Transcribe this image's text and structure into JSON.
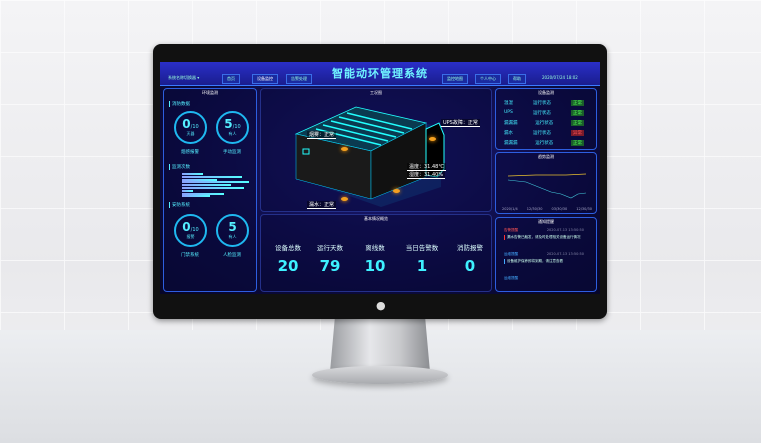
{
  "header": {
    "title": "智能动环管理系统",
    "account": "系统名称切换器 ▾",
    "nav": [
      "首页",
      "设备监控",
      "告警处理",
      "监控地图",
      "个人中心",
      "帮助"
    ],
    "datetime": "2020/07/24 18:02"
  },
  "left": {
    "title": "环境监测",
    "fire": {
      "label": "消防数据",
      "a": {
        "value": "0",
        "total": "/10",
        "unit": "灭器",
        "caption": "烟感报警"
      },
      "b": {
        "value": "5",
        "total": "/10",
        "unit": "有人",
        "caption": "手动监测"
      }
    },
    "monitor": {
      "label": "监测次数",
      "bars": [
        0.3,
        0.85,
        0.5,
        0.95,
        0.7,
        0.88,
        0.15,
        0.6,
        0.4
      ]
    },
    "security": {
      "label": "安防系统",
      "a": {
        "value": "0",
        "total": "/10",
        "unit": "报警",
        "caption": "门禁系统"
      },
      "b": {
        "value": "5",
        "total": "",
        "unit": "有人",
        "caption": "人脸监测"
      }
    }
  },
  "center": {
    "title": "工况图",
    "labels": {
      "smoke": "烟雾：正常",
      "ups": "UPS故障：正常",
      "temp": "温度：31.48℃",
      "humidity": "湿度：31.40%",
      "water": "漏水：正常"
    },
    "stats_title": "基本情况概览",
    "stats": [
      {
        "label": "设备总数",
        "value": "20"
      },
      {
        "label": "运行天数",
        "value": "79"
      },
      {
        "label": "离线数",
        "value": "10"
      },
      {
        "label": "当日告警数",
        "value": "1"
      },
      {
        "label": "消防报警",
        "value": "0"
      }
    ]
  },
  "right": {
    "status_title": "设备监测",
    "status": [
      {
        "name": "温湿",
        "state": "运行状态",
        "flag": "正常",
        "ok": true
      },
      {
        "name": "UPS",
        "state": "运行状态",
        "flag": "正常",
        "ok": true
      },
      {
        "name": "漏漏漏",
        "state": "运行状态",
        "flag": "正常",
        "ok": true
      },
      {
        "name": "漏水",
        "state": "运行状态",
        "flag": "异常",
        "ok": false
      },
      {
        "name": "漏漏漏",
        "state": "运行状态",
        "flag": "正常",
        "ok": true
      }
    ],
    "trend_title": "趋势监测",
    "trend_ticks_y": [
      "100",
      "80",
      "60",
      "40",
      "20",
      "0"
    ],
    "trend_ticks_x": [
      "2020/1/4",
      "12/30/30",
      "03/30/30",
      "12/30/30"
    ],
    "alarm_title": "通知提醒",
    "alarms": [
      {
        "type": "告警提醒",
        "time": "2020-07-13 13:50:50",
        "text": "漏水告警已触发，请及时处理相关设备运行情况"
      },
      {
        "type": "运维提醒",
        "time": "2020-07-13 13:50:50",
        "text": "设备维护保养即将到期，请注意查看"
      },
      {
        "type": "运维提醒",
        "time": "",
        "text": ""
      }
    ]
  },
  "colors": {
    "accent": "#3ef0ff",
    "header": "#2a2fc8",
    "ok": "#5f5",
    "alarm": "#f55"
  }
}
